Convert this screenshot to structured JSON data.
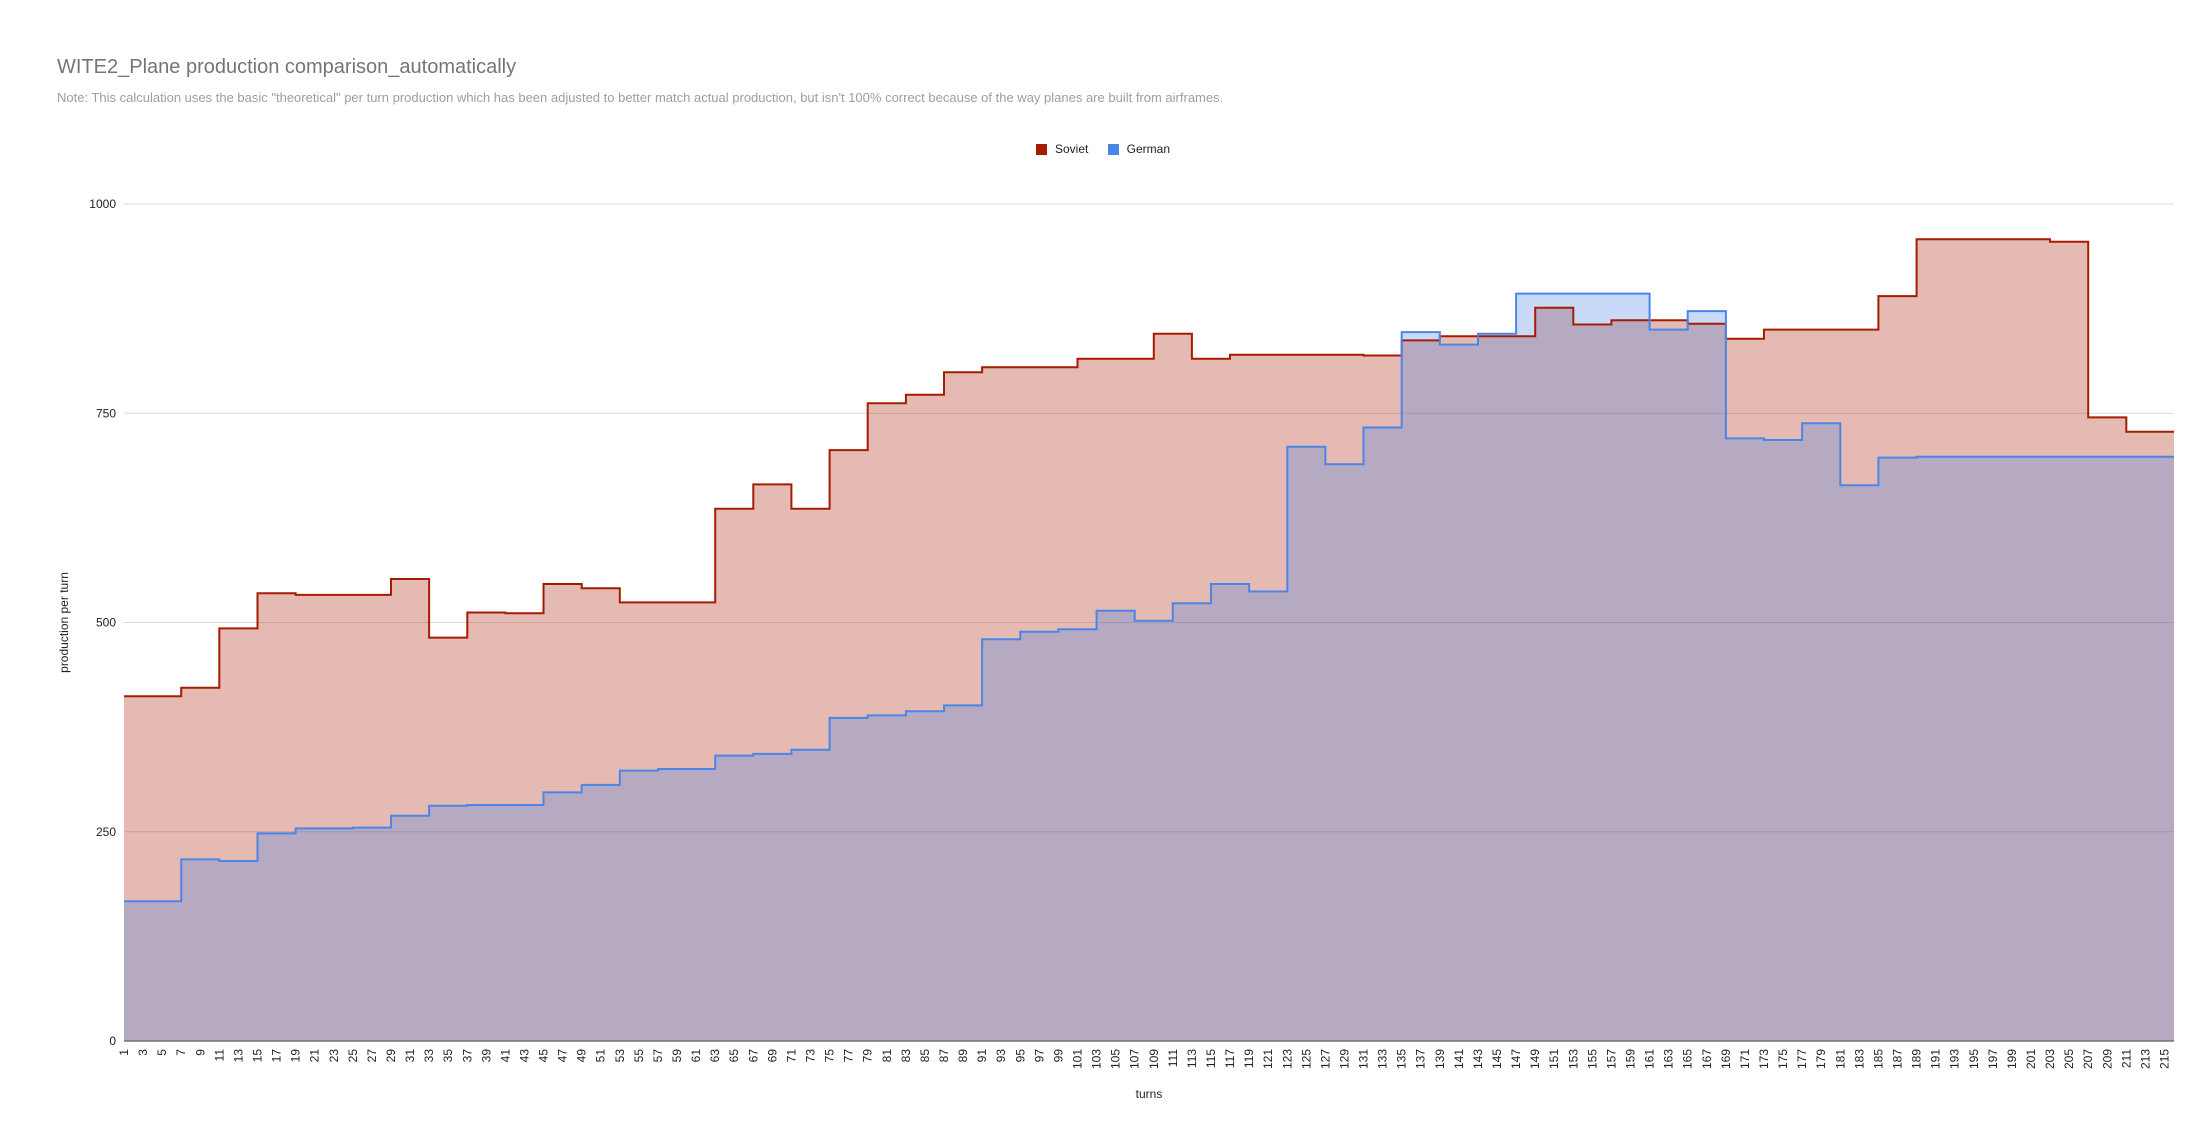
{
  "chart_data": {
    "type": "area",
    "title": "WITE2_Plane production comparison_automatically",
    "subtitle": "Note: This calculation uses the basic \"theoretical\" per turn production which has been adjusted to better match actual production, but isn't 100% correct because of the way planes are built from airframes.",
    "xlabel": "turns",
    "ylabel": "production per turn",
    "ylim": [
      0,
      1000
    ],
    "yticks": [
      "0",
      "250",
      "500",
      "750",
      "1000"
    ],
    "x_range": [
      1,
      216
    ],
    "xticks": [
      "1",
      "3",
      "5",
      "7",
      "9",
      "11",
      "13",
      "15",
      "17",
      "19",
      "21",
      "23",
      "25",
      "27",
      "29",
      "31",
      "33",
      "35",
      "37",
      "39",
      "41",
      "43",
      "45",
      "47",
      "49",
      "51",
      "53",
      "55",
      "57",
      "59",
      "61",
      "63",
      "65",
      "67",
      "69",
      "71",
      "73",
      "75",
      "77",
      "79",
      "81",
      "83",
      "85",
      "87",
      "89",
      "91",
      "93",
      "95",
      "97",
      "99",
      "101",
      "103",
      "105",
      "107",
      "109",
      "111",
      "113",
      "115",
      "117",
      "119",
      "121",
      "123",
      "125",
      "127",
      "129",
      "131",
      "133",
      "135",
      "137",
      "139",
      "141",
      "143",
      "145",
      "147",
      "149",
      "151",
      "153",
      "155",
      "157",
      "159",
      "161",
      "163",
      "165",
      "167",
      "169",
      "171",
      "173",
      "175",
      "177",
      "179",
      "181",
      "183",
      "185",
      "187",
      "189",
      "191",
      "193",
      "195",
      "197",
      "199",
      "201",
      "203",
      "205",
      "207",
      "209",
      "211",
      "213",
      "215"
    ],
    "legend_position": "top-center",
    "series": [
      {
        "name": "Soviet",
        "color": "#a61c00",
        "fill": "#e6b8af",
        "steps": [
          [
            1,
            412
          ],
          [
            7,
            422
          ],
          [
            11,
            493
          ],
          [
            15,
            535
          ],
          [
            19,
            533
          ],
          [
            29,
            552
          ],
          [
            33,
            482
          ],
          [
            37,
            512
          ],
          [
            41,
            511
          ],
          [
            45,
            546
          ],
          [
            49,
            541
          ],
          [
            53,
            524
          ],
          [
            63,
            636
          ],
          [
            67,
            665
          ],
          [
            71,
            636
          ],
          [
            75,
            706
          ],
          [
            79,
            762
          ],
          [
            83,
            772
          ],
          [
            87,
            799
          ],
          [
            91,
            805
          ],
          [
            101,
            815
          ],
          [
            109,
            845
          ],
          [
            113,
            815
          ],
          [
            117,
            820
          ],
          [
            131,
            819
          ],
          [
            135,
            837
          ],
          [
            139,
            842
          ],
          [
            149,
            876
          ],
          [
            153,
            856
          ],
          [
            157,
            861
          ],
          [
            165,
            857
          ],
          [
            169,
            839
          ],
          [
            173,
            850
          ],
          [
            185,
            890
          ],
          [
            189,
            958
          ],
          [
            203,
            955
          ],
          [
            207,
            745
          ],
          [
            211,
            728
          ]
        ]
      },
      {
        "name": "German",
        "color": "#4a86e8",
        "fill": "#c9daf8",
        "steps": [
          [
            1,
            167
          ],
          [
            7,
            217
          ],
          [
            11,
            215
          ],
          [
            15,
            248
          ],
          [
            19,
            254
          ],
          [
            25,
            255
          ],
          [
            29,
            269
          ],
          [
            33,
            281
          ],
          [
            37,
            282
          ],
          [
            45,
            297
          ],
          [
            49,
            306
          ],
          [
            53,
            323
          ],
          [
            57,
            325
          ],
          [
            63,
            341
          ],
          [
            67,
            343
          ],
          [
            71,
            348
          ],
          [
            75,
            386
          ],
          [
            79,
            389
          ],
          [
            83,
            394
          ],
          [
            87,
            401
          ],
          [
            91,
            480
          ],
          [
            95,
            489
          ],
          [
            99,
            492
          ],
          [
            103,
            514
          ],
          [
            107,
            502
          ],
          [
            111,
            523
          ],
          [
            115,
            546
          ],
          [
            119,
            537
          ],
          [
            123,
            710
          ],
          [
            127,
            689
          ],
          [
            131,
            733
          ],
          [
            135,
            847
          ],
          [
            139,
            832
          ],
          [
            143,
            845
          ],
          [
            147,
            893
          ],
          [
            161,
            850
          ],
          [
            165,
            872
          ],
          [
            169,
            720
          ],
          [
            173,
            718
          ],
          [
            177,
            738
          ],
          [
            181,
            664
          ],
          [
            185,
            697
          ],
          [
            189,
            698
          ]
        ]
      }
    ]
  }
}
